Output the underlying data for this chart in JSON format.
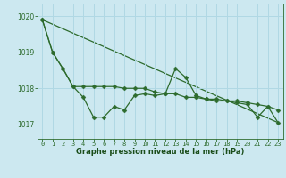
{
  "title": "Graphe pression niveau de la mer (hPa)",
  "background_color": "#cce8f0",
  "plot_bg_color": "#cce8f0",
  "line_color": "#2d6b2d",
  "grid_color": "#b0d8e4",
  "xlabel_color": "#1a4d1a",
  "xlim": [
    -0.5,
    23.5
  ],
  "ylim": [
    1016.6,
    1020.35
  ],
  "yticks": [
    1017,
    1018,
    1019,
    1020
  ],
  "xticks": [
    0,
    1,
    2,
    3,
    4,
    5,
    6,
    7,
    8,
    9,
    10,
    11,
    12,
    13,
    14,
    15,
    16,
    17,
    18,
    19,
    20,
    21,
    22,
    23
  ],
  "series1": [
    1019.9,
    1019.0,
    1018.55,
    1018.05,
    1017.75,
    1017.2,
    1017.2,
    1017.5,
    1017.4,
    1017.8,
    1017.85,
    1017.8,
    1017.85,
    1018.55,
    1018.3,
    1017.8,
    1017.7,
    1017.65,
    1017.65,
    1017.6,
    1017.55,
    1017.2,
    1017.5,
    1017.05
  ],
  "series2": [
    1019.9,
    1019.0,
    1018.55,
    1018.05,
    1018.05,
    1018.05,
    1018.05,
    1018.05,
    1018.0,
    1018.0,
    1018.0,
    1017.9,
    1017.85,
    1017.85,
    1017.75,
    1017.75,
    1017.7,
    1017.7,
    1017.65,
    1017.65,
    1017.6,
    1017.55,
    1017.5,
    1017.4
  ],
  "series3_x": [
    0,
    23
  ],
  "series3_y": [
    1019.9,
    1017.05
  ],
  "marker": "D",
  "markersize": 2.5,
  "linewidth": 0.9
}
